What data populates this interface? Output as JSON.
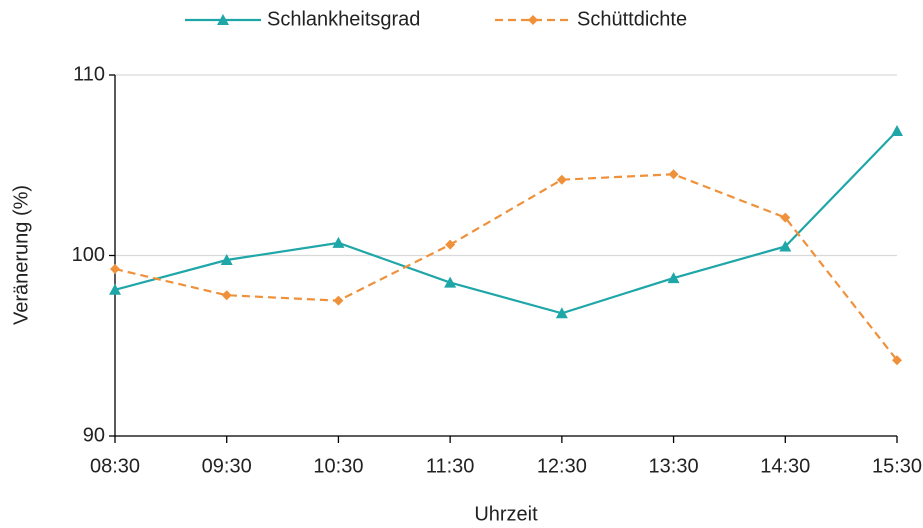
{
  "chart_data": {
    "type": "line",
    "xlabel": "Uhrzeit",
    "ylabel": "Veränerung (%)",
    "categories": [
      "08:30",
      "09:30",
      "10:30",
      "11:30",
      "12:30",
      "13:30",
      "14:30",
      "15:30"
    ],
    "series": [
      {
        "name": "Schlankheitsgrad",
        "color": "#1fa6a8",
        "marker": "triangle",
        "dashed": false,
        "values": [
          98.1,
          99.75,
          100.7,
          98.5,
          96.8,
          98.75,
          100.5,
          106.9
        ]
      },
      {
        "name": "Schüttdichte",
        "color": "#ef913a",
        "marker": "diamond",
        "dashed": true,
        "values": [
          99.25,
          97.8,
          97.5,
          100.6,
          104.2,
          104.5,
          102.1,
          94.2
        ]
      }
    ],
    "ylim": [
      90,
      110
    ],
    "yticks": [
      90,
      100,
      110
    ],
    "grid": true,
    "legend": "top"
  }
}
